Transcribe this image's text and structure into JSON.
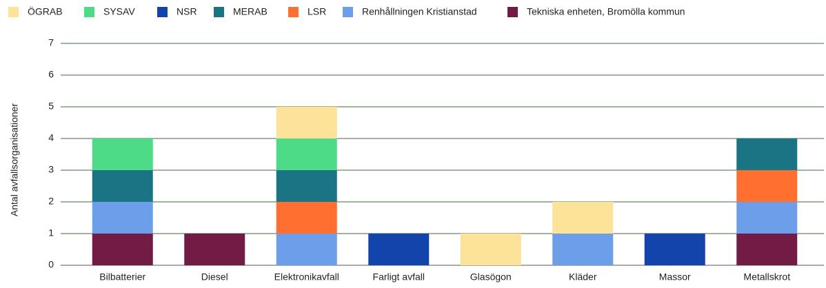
{
  "chart_data": {
    "type": "stacked_bar",
    "y_label": "Antal avfallsorganisationer",
    "categories": [
      "Bilbatterier",
      "Diesel",
      "Elektronikavfall",
      "Farligt avfall",
      "Glasögon",
      "Kläder",
      "Massor",
      "Metallskrot"
    ],
    "series": [
      {
        "name": "ÖGRAB",
        "color": "#fde29a",
        "values": [
          0,
          0,
          1,
          0,
          1,
          1,
          0,
          0
        ]
      },
      {
        "name": "SYSAV",
        "color": "#4ddb87",
        "values": [
          1,
          0,
          1,
          0,
          0,
          0,
          0,
          0
        ]
      },
      {
        "name": "NSR",
        "color": "#1244ab",
        "values": [
          0,
          0,
          0,
          1,
          0,
          0,
          1,
          0
        ]
      },
      {
        "name": "MERAB",
        "color": "#1b7484",
        "values": [
          1,
          0,
          1,
          0,
          0,
          0,
          0,
          1
        ]
      },
      {
        "name": "LSR",
        "color": "#ff6f30",
        "values": [
          0,
          0,
          1,
          0,
          0,
          0,
          0,
          1
        ]
      },
      {
        "name": "Renhållningen Kristianstad",
        "color": "#6d9eea",
        "values": [
          1,
          0,
          1,
          0,
          0,
          1,
          0,
          1
        ]
      },
      {
        "name": "Tekniska enheten, Bromölla kommun",
        "color": "#721b45",
        "values": [
          1,
          1,
          0,
          0,
          0,
          0,
          0,
          1
        ]
      }
    ],
    "ylim": [
      0,
      7
    ],
    "yticks": [
      0,
      1,
      2,
      3,
      4,
      5,
      6,
      7
    ],
    "grid": true,
    "legend": "top"
  }
}
